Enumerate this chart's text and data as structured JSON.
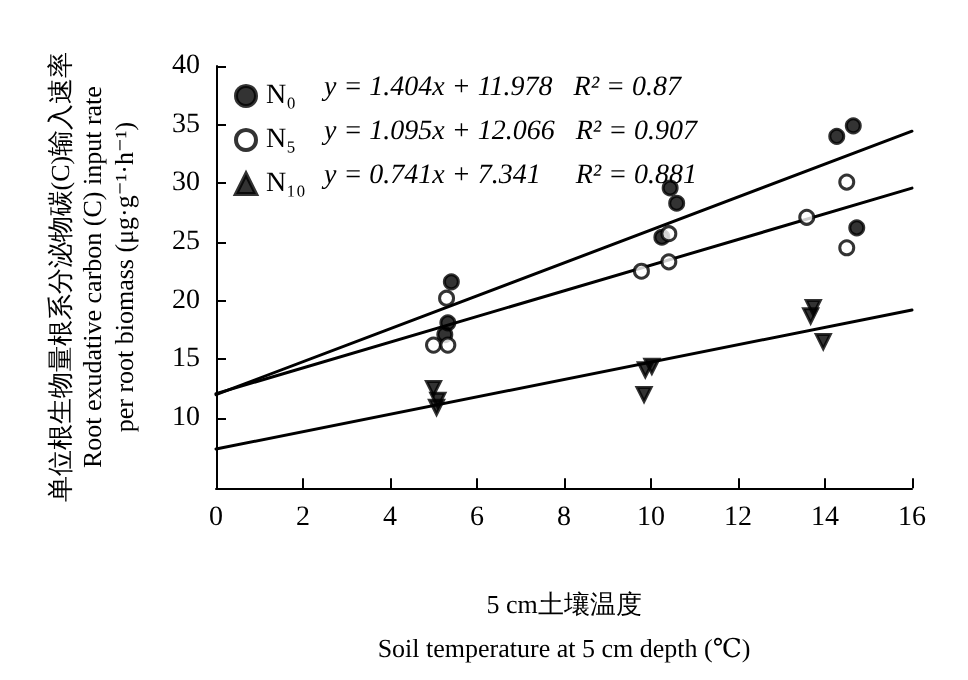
{
  "chart_data": {
    "type": "scatter",
    "xlabel": "5 cm土壤温度\nSoil temperature at 5 cm depth (℃)",
    "ylabel": "单位根生物量根系分泌物碳(C)输入速率\nRoot exudative carbon (C) input rate\nper root biomass (μg·g⁻¹·h⁻¹)",
    "xlim": [
      0,
      16
    ],
    "xticks": [
      0,
      2,
      4,
      6,
      8,
      10,
      12,
      14,
      16
    ],
    "ylim": [
      4,
      40
    ],
    "yticks": [
      10,
      15,
      20,
      25,
      30,
      35,
      40
    ],
    "grid": false,
    "legend": "top left",
    "annotations": [
      "y = 1.404x + 11.978   R² = 0.87",
      "y = 1.095x + 12.066   R² = 0.907",
      "y = 0.741x + 7.341     R² = 0.881"
    ],
    "series": [
      {
        "name": "N₀",
        "color": "#000000",
        "marker": "circle",
        "x": [
          5.41,
          5.33,
          5.26,
          10.44,
          10.59,
          10.25,
          14.27,
          14.65,
          14.73
        ],
        "values": [
          21.6,
          18.1,
          17.1,
          29.6,
          28.3,
          25.4,
          34.0,
          34.9,
          26.2
        ]
      },
      {
        "name": "N₅",
        "color": "#ffffff",
        "marker": "circle",
        "x": [
          5.3,
          5.0,
          5.33,
          10.41,
          13.58,
          14.5,
          9.78,
          10.41,
          14.5
        ],
        "values": [
          20.2,
          16.2,
          16.2,
          25.7,
          27.1,
          30.1,
          22.5,
          23.3,
          24.5
        ]
      },
      {
        "name": "N₁₀",
        "color": "#000000",
        "marker": "triangle",
        "x": [
          5.0,
          5.07,
          5.1,
          9.87,
          10.02,
          9.84,
          13.73,
          13.67,
          13.96
        ],
        "values": [
          12.5,
          10.9,
          11.5,
          14.1,
          14.4,
          12.0,
          19.4,
          18.7,
          16.5
        ]
      },
      {
        "type": "line",
        "color": "#000000",
        "marker": "none",
        "line_style": "solid",
        "x": [
          0,
          16
        ],
        "values": [
          11.978,
          34.442
        ]
      },
      {
        "type": "line",
        "color": "#000000",
        "marker": "none",
        "line_style": "solid",
        "x": [
          0,
          16
        ],
        "values": [
          12.066,
          29.586
        ]
      },
      {
        "type": "line",
        "color": "#000000",
        "marker": "none",
        "line_style": "solid",
        "x": [
          0,
          16
        ],
        "values": [
          7.341,
          19.197
        ]
      }
    ]
  }
}
